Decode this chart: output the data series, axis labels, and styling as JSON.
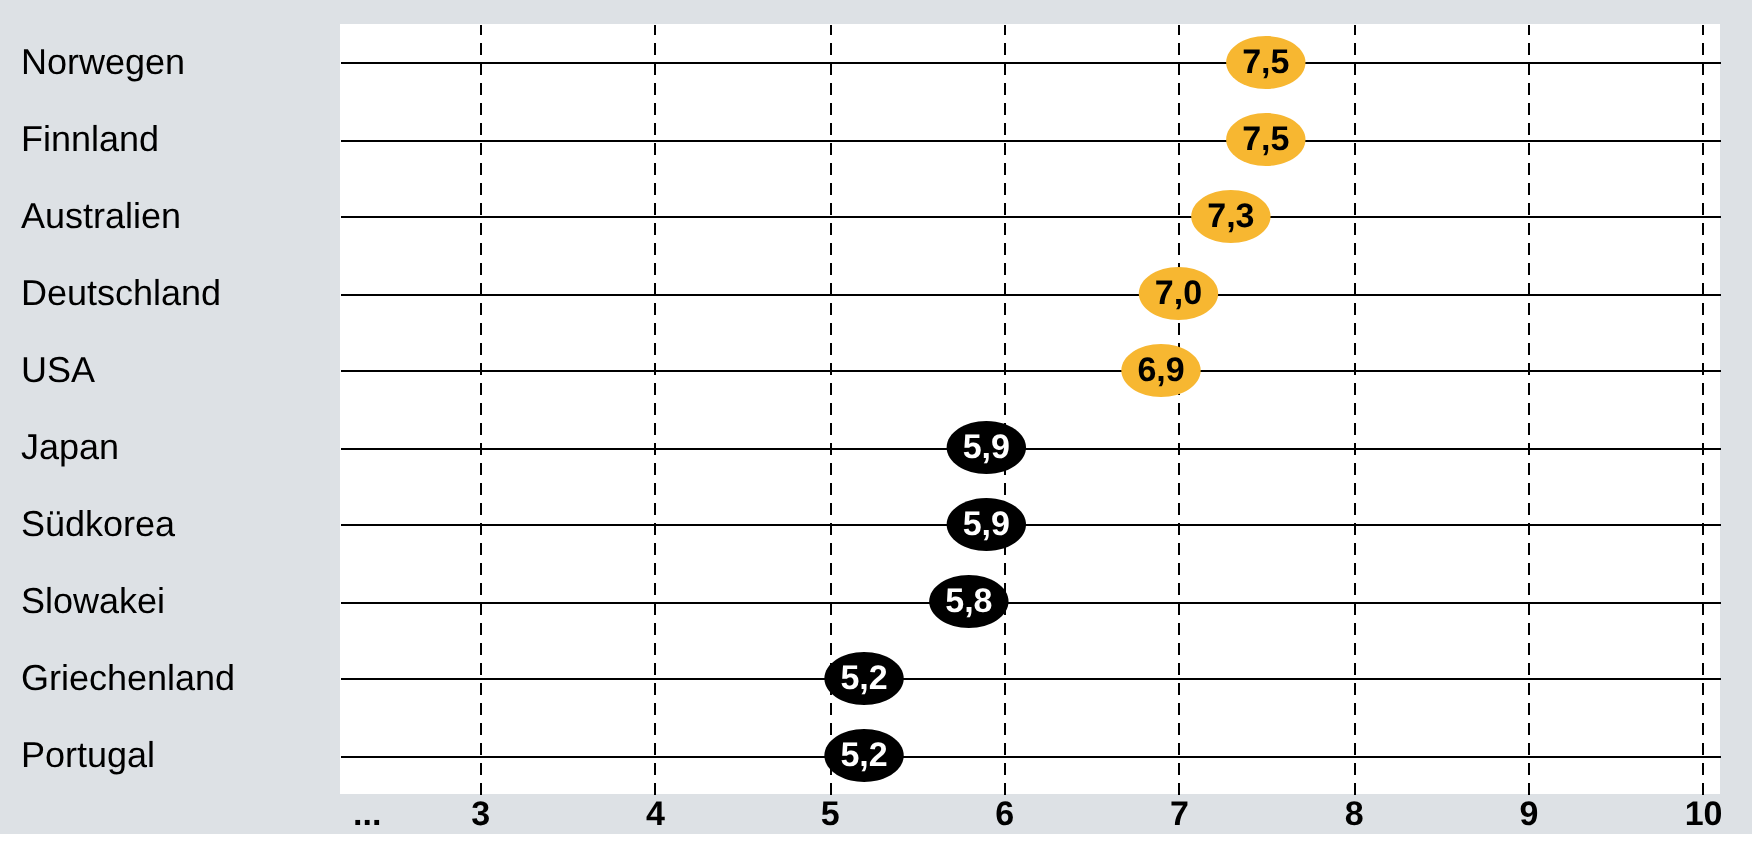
{
  "chart_data": {
    "type": "scatter",
    "orientation": "horizontal",
    "categories": [
      "Norwegen",
      "Finnland",
      "Australien",
      "Deutschland",
      "USA",
      "Japan",
      "Südkorea",
      "Slowakei",
      "Griechenland",
      "Portugal"
    ],
    "values": [
      7.5,
      7.5,
      7.3,
      7.0,
      6.9,
      5.9,
      5.9,
      5.8,
      5.2,
      5.2
    ],
    "colors": [
      "#f7b731",
      "#f7b731",
      "#f7b731",
      "#f7b731",
      "#f7b731",
      "#000000",
      "#000000",
      "#000000",
      "#000000",
      "#000000"
    ],
    "xlim": [
      2.2,
      10.1
    ],
    "xticks": [
      {
        "value": 2.35,
        "label": "..."
      },
      3,
      4,
      5,
      6,
      7,
      8,
      9,
      10
    ],
    "value_labels": [
      "7,5",
      "7,5",
      "7,3",
      "7,0",
      "6,9",
      "5,9",
      "5,9",
      "5,8",
      "5,2",
      "5,2"
    ],
    "grid": true,
    "marker": "circle"
  }
}
